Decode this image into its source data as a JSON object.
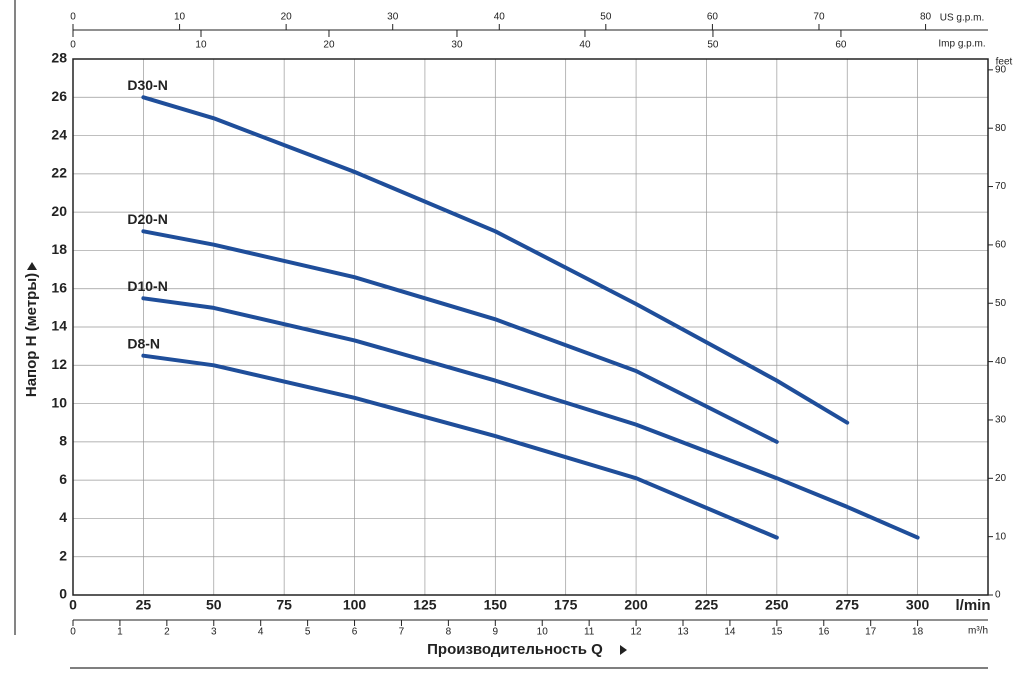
{
  "chart_data": {
    "type": "line",
    "x_label": "Производительность Q",
    "y_label": "Напор H (метры)",
    "x": [
      25,
      50,
      100,
      150,
      200,
      250,
      275,
      300
    ],
    "series": [
      {
        "name": "D30-N",
        "color": "#1f4e9a",
        "values": [
          26,
          24.9,
          22.1,
          19,
          15.2,
          11.2,
          9,
          null
        ]
      },
      {
        "name": "D20-N",
        "color": "#1f4e9a",
        "values": [
          19,
          18.3,
          16.6,
          14.4,
          11.7,
          8,
          null,
          null
        ]
      },
      {
        "name": "D10-N",
        "color": "#1f4e9a",
        "values": [
          15.5,
          15,
          13.3,
          11.2,
          8.9,
          6.1,
          4.6,
          3
        ]
      },
      {
        "name": "D8-N",
        "color": "#1f4e9a",
        "values": [
          12.5,
          12,
          10.3,
          8.3,
          6.1,
          3,
          null,
          null
        ]
      }
    ],
    "xlim": [
      0,
      325
    ],
    "xticks": [
      0,
      25,
      50,
      75,
      100,
      125,
      150,
      175,
      200,
      225,
      250,
      275,
      300
    ],
    "x_unit": "l/min",
    "ylim": [
      0,
      28
    ],
    "yticks": [
      0,
      2,
      4,
      6,
      8,
      10,
      12,
      14,
      16,
      18,
      20,
      22,
      24,
      26,
      28
    ],
    "y2lim": [
      0,
      91.86
    ],
    "y2ticks": [
      0,
      10,
      20,
      30,
      40,
      50,
      60,
      70,
      80,
      90
    ],
    "y2_unit": "feet",
    "x2lim": [
      0,
      19.5
    ],
    "x2ticks": [
      0,
      1,
      2,
      3,
      4,
      5,
      6,
      7,
      8,
      9,
      10,
      11,
      12,
      13,
      14,
      15,
      16,
      17,
      18
    ],
    "x2_unit": "m³/h",
    "x3lim": [
      0,
      85.86
    ],
    "x3ticks": [
      0,
      10,
      20,
      30,
      40,
      50,
      60,
      70,
      80
    ],
    "x3_unit": "US g.p.m.",
    "x4lim": [
      0,
      71.49
    ],
    "x4ticks": [
      0,
      10,
      20,
      30,
      40,
      50,
      60
    ],
    "x4_unit": "Imp g.p.m.",
    "grid": true
  }
}
